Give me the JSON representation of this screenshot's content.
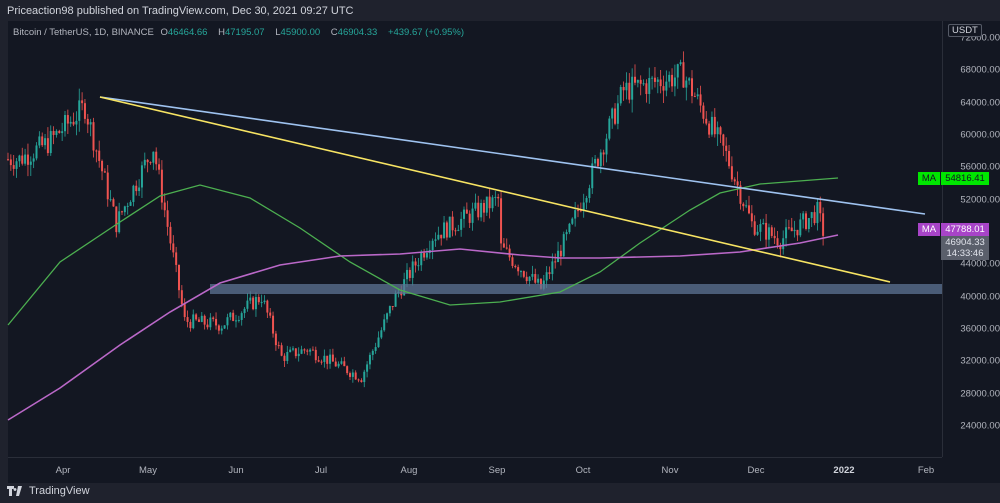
{
  "header": {
    "published": "Priceaction98 published on TradingView.com, Dec 30, 2021 09:27 UTC"
  },
  "legend": {
    "symbol": "Bitcoin / TetherUS, 1D, BINANCE",
    "open_label": "O",
    "open": "46464.66",
    "high_label": "H",
    "high": "47195.07",
    "low_label": "L",
    "low": "45900.00",
    "close_label": "C",
    "close": "46904.33",
    "change": "+439.67 (+0.95%)"
  },
  "price_axis": {
    "currency": "USDT",
    "ticks": [
      "72000.00",
      "68000.00",
      "64000.00",
      "60000.00",
      "56000.00",
      "52000.00",
      "44000.00",
      "40000.00",
      "36000.00",
      "32000.00",
      "28000.00",
      "24000.00"
    ]
  },
  "tags": {
    "ma_green": {
      "label": "MA",
      "value": "54816.41",
      "color": "#00e600"
    },
    "ma_purple": {
      "label": "MA",
      "value": "47788.01",
      "color": "#b24fd6"
    },
    "last_price": {
      "value": "46904.33",
      "countdown": "14:33:46"
    }
  },
  "time_axis": {
    "labels": [
      "Apr",
      "May",
      "Jun",
      "Jul",
      "Aug",
      "Sep",
      "Oct",
      "Nov",
      "Dec",
      "2022",
      "Feb"
    ]
  },
  "footer": {
    "brand": "TradingView"
  },
  "colors": {
    "up": "#26a69a",
    "down": "#ef5350",
    "ma_short": "#4caf50",
    "ma_long": "#ba68c8",
    "trend_blue": "#9fc3f0",
    "trend_yellow": "#f7e463",
    "support_zone": "#5d7494"
  },
  "chart_data": {
    "type": "candlestick",
    "title": "Bitcoin / TetherUS, 1D, BINANCE",
    "xlabel": "",
    "ylabel": "USDT",
    "ylim": [
      21000,
      73000
    ],
    "x_ticks": [
      "Apr",
      "May",
      "Jun",
      "Jul",
      "Aug",
      "Sep",
      "Oct",
      "Nov",
      "Dec",
      "2022",
      "Feb"
    ],
    "y_ticks": [
      24000,
      28000,
      32000,
      36000,
      40000,
      44000,
      48000,
      52000,
      56000,
      60000,
      64000,
      68000,
      72000
    ],
    "approx_closes_by_date": [
      {
        "date": "2021-03-22",
        "close": 57000
      },
      {
        "date": "2021-04-01",
        "close": 59000
      },
      {
        "date": "2021-04-14",
        "close": 63500
      },
      {
        "date": "2021-04-25",
        "close": 49000
      },
      {
        "date": "2021-05-08",
        "close": 58500
      },
      {
        "date": "2021-05-19",
        "close": 37000
      },
      {
        "date": "2021-06-01",
        "close": 36500
      },
      {
        "date": "2021-06-15",
        "close": 40000
      },
      {
        "date": "2021-06-22",
        "close": 32500
      },
      {
        "date": "2021-07-01",
        "close": 33500
      },
      {
        "date": "2021-07-20",
        "close": 30000
      },
      {
        "date": "2021-08-01",
        "close": 40000
      },
      {
        "date": "2021-08-14",
        "close": 47500
      },
      {
        "date": "2021-09-06",
        "close": 52000
      },
      {
        "date": "2021-09-07",
        "close": 46000
      },
      {
        "date": "2021-09-21",
        "close": 41000
      },
      {
        "date": "2021-10-01",
        "close": 48000
      },
      {
        "date": "2021-10-20",
        "close": 65500
      },
      {
        "date": "2021-11-10",
        "close": 67500
      },
      {
        "date": "2021-11-25",
        "close": 57500
      },
      {
        "date": "2021-12-04",
        "close": 49000
      },
      {
        "date": "2021-12-14",
        "close": 47000
      },
      {
        "date": "2021-12-27",
        "close": 50500
      },
      {
        "date": "2021-12-30",
        "close": 46904.33
      }
    ],
    "series": [
      {
        "name": "MA (short, green)",
        "last": 54816.41
      },
      {
        "name": "MA (long, purple)",
        "last": 47788.01
      }
    ],
    "annotations": [
      {
        "type": "trendline",
        "color": "blue",
        "from": {
          "date": "2021-04-14",
          "price": 64800
        },
        "to": {
          "date": "2022-01-27",
          "price": 51000
        }
      },
      {
        "type": "trendline",
        "color": "yellow",
        "from": {
          "date": "2021-04-14",
          "price": 64800
        },
        "to": {
          "date": "2022-01-25",
          "price": 42000
        }
      },
      {
        "type": "zone",
        "label": "support",
        "from_price": 40400,
        "to_price": 41500,
        "from_date": "2021-05-30",
        "to_date": "end"
      }
    ],
    "last_price": 46904.33
  }
}
